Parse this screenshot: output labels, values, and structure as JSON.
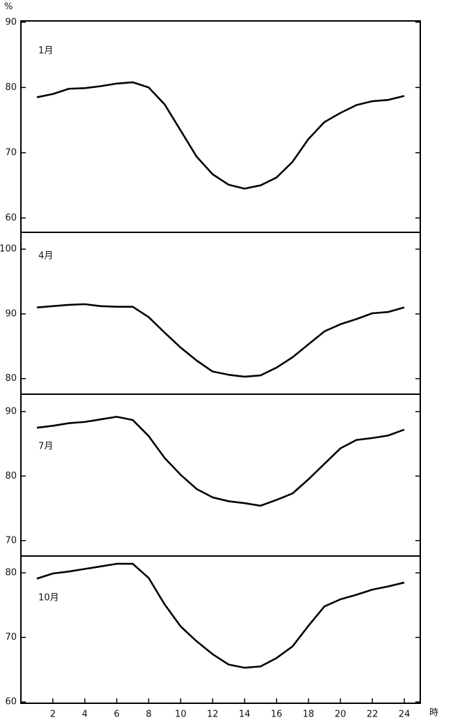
{
  "chart_data": [
    {
      "type": "line",
      "label": "1月",
      "y_label": "%",
      "x": [
        1,
        2,
        3,
        4,
        5,
        6,
        7,
        8,
        9,
        10,
        11,
        12,
        13,
        14,
        15,
        16,
        17,
        18,
        19,
        20,
        21,
        22,
        23,
        24
      ],
      "values": [
        78.5,
        79.0,
        79.8,
        79.9,
        80.2,
        80.6,
        80.8,
        80.0,
        77.4,
        73.4,
        69.4,
        66.7,
        65.1,
        64.5,
        65.0,
        66.2,
        68.6,
        72.1,
        74.7,
        76.1,
        77.3,
        77.9,
        78.1,
        78.7
      ],
      "color": "#000000",
      "xlim": [
        0,
        25
      ],
      "ylim": [
        57.8,
        90.2
      ],
      "yticks": [
        60,
        70,
        80,
        90
      ]
    },
    {
      "type": "line",
      "label": "4月",
      "x": [
        1,
        2,
        3,
        4,
        5,
        6,
        7,
        8,
        9,
        10,
        11,
        12,
        13,
        14,
        15,
        16,
        17,
        18,
        19,
        20,
        21,
        22,
        23,
        24
      ],
      "values": [
        91.0,
        91.2,
        91.4,
        91.5,
        91.2,
        91.1,
        91.1,
        89.5,
        87.1,
        84.8,
        82.8,
        81.1,
        80.6,
        80.3,
        80.5,
        81.7,
        83.3,
        85.3,
        87.3,
        88.4,
        89.2,
        90.1,
        90.3,
        91.0
      ],
      "color": "#000000",
      "xlim": [
        0,
        25
      ],
      "ylim": [
        77.6,
        102.6
      ],
      "yticks": [
        80,
        90,
        100
      ]
    },
    {
      "type": "line",
      "label": "7月",
      "x": [
        1,
        2,
        3,
        4,
        5,
        6,
        7,
        8,
        9,
        10,
        11,
        12,
        13,
        14,
        15,
        16,
        17,
        18,
        19,
        20,
        21,
        22,
        23,
        24
      ],
      "values": [
        87.5,
        87.8,
        88.2,
        88.4,
        88.8,
        89.2,
        88.7,
        86.2,
        82.8,
        80.2,
        78.0,
        76.7,
        76.1,
        75.8,
        75.4,
        76.3,
        77.3,
        79.5,
        81.9,
        84.3,
        85.6,
        85.9,
        86.3,
        87.2
      ],
      "color": "#000000",
      "xlim": [
        0,
        25
      ],
      "ylim": [
        67.6,
        92.7
      ],
      "yticks": [
        70,
        80,
        90
      ]
    },
    {
      "type": "line",
      "label": "10月",
      "x_label": "時",
      "x": [
        1,
        2,
        3,
        4,
        5,
        6,
        7,
        8,
        9,
        10,
        11,
        12,
        13,
        14,
        15,
        16,
        17,
        18,
        19,
        20,
        21,
        22,
        23,
        24
      ],
      "values": [
        79.1,
        79.9,
        80.2,
        80.6,
        81.0,
        81.4,
        81.4,
        79.2,
        75.1,
        71.7,
        69.4,
        67.4,
        65.8,
        65.3,
        65.5,
        66.8,
        68.6,
        71.8,
        74.8,
        75.9,
        76.6,
        77.4,
        77.9,
        78.5
      ],
      "color": "#000000",
      "xlim": [
        0,
        25
      ],
      "ylim": [
        59.8,
        82.6
      ],
      "yticks": [
        60,
        70,
        80
      ],
      "xticks": [
        2,
        4,
        6,
        8,
        10,
        12,
        14,
        16,
        18,
        20,
        22,
        24
      ]
    }
  ]
}
